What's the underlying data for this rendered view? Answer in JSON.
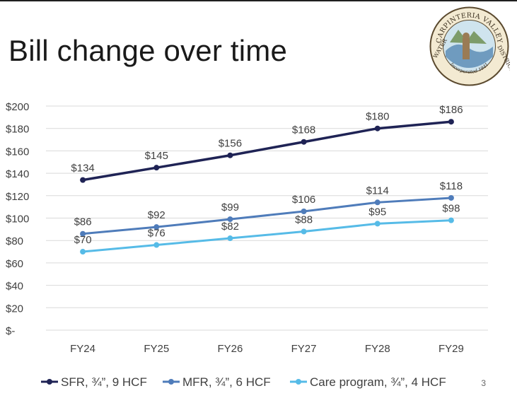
{
  "slide": {
    "title": "Bill change over time",
    "page_number": "3",
    "logo": {
      "text_top": "CARPINTERIA VALLEY",
      "text_left": "WATER",
      "text_right": "DISTRICT",
      "text_bottom": "Incorporated 1941"
    }
  },
  "colors": {
    "sfr": "#1f2355",
    "mfr": "#4f7cba",
    "care": "#56bbe7",
    "grid": "#d9d9d9",
    "text": "#404040"
  },
  "chart_data": {
    "type": "line",
    "title": "",
    "xlabel": "",
    "ylabel": "",
    "categories": [
      "FY24",
      "FY25",
      "FY26",
      "FY27",
      "FY28",
      "FY29"
    ],
    "ylim": [
      0,
      200
    ],
    "yticks": [
      0,
      20,
      40,
      60,
      80,
      100,
      120,
      140,
      160,
      180,
      200
    ],
    "ytick_labels": [
      "$-",
      "$20",
      "$40",
      "$60",
      "$80",
      "$100",
      "$120",
      "$140",
      "$160",
      "$180",
      "$200"
    ],
    "grid": true,
    "legend_position": "bottom",
    "series": [
      {
        "name": "SFR, ¾”, 9 HCF",
        "values": [
          134,
          145,
          156,
          168,
          180,
          186
        ],
        "labels": [
          "$134",
          "$145",
          "$156",
          "$168",
          "$180",
          "$186"
        ]
      },
      {
        "name": "MFR, ¾”, 6 HCF",
        "values": [
          86,
          92,
          99,
          106,
          114,
          118
        ],
        "labels": [
          "$86",
          "$92",
          "$99",
          "$106",
          "$114",
          "$118"
        ]
      },
      {
        "name": "Care program, ¾”, 4 HCF",
        "values": [
          70,
          76,
          82,
          88,
          95,
          98
        ],
        "labels": [
          "$70",
          "$76",
          "$82",
          "$88",
          "$95",
          "$98"
        ]
      }
    ]
  }
}
